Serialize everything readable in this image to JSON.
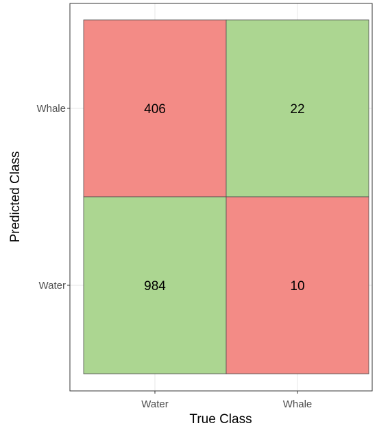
{
  "chart_data": {
    "type": "heatmap",
    "title": "",
    "xlabel": "True Class",
    "ylabel": "Predicted Class",
    "x_categories": [
      "Water",
      "Whale"
    ],
    "y_categories": [
      "Water",
      "Whale"
    ],
    "grid": true,
    "legend": "none",
    "colors": {
      "correct": "#acd691",
      "incorrect": "#f38b86",
      "cell_border": "#4d4d4d",
      "grid": "#ebebeb",
      "panel_border": "#333333"
    },
    "cells": [
      {
        "x": "Water",
        "y": "Whale",
        "value": 406,
        "correct": false
      },
      {
        "x": "Whale",
        "y": "Whale",
        "value": 22,
        "correct": true
      },
      {
        "x": "Water",
        "y": "Water",
        "value": 984,
        "correct": true
      },
      {
        "x": "Whale",
        "y": "Water",
        "value": 10,
        "correct": false
      }
    ]
  }
}
